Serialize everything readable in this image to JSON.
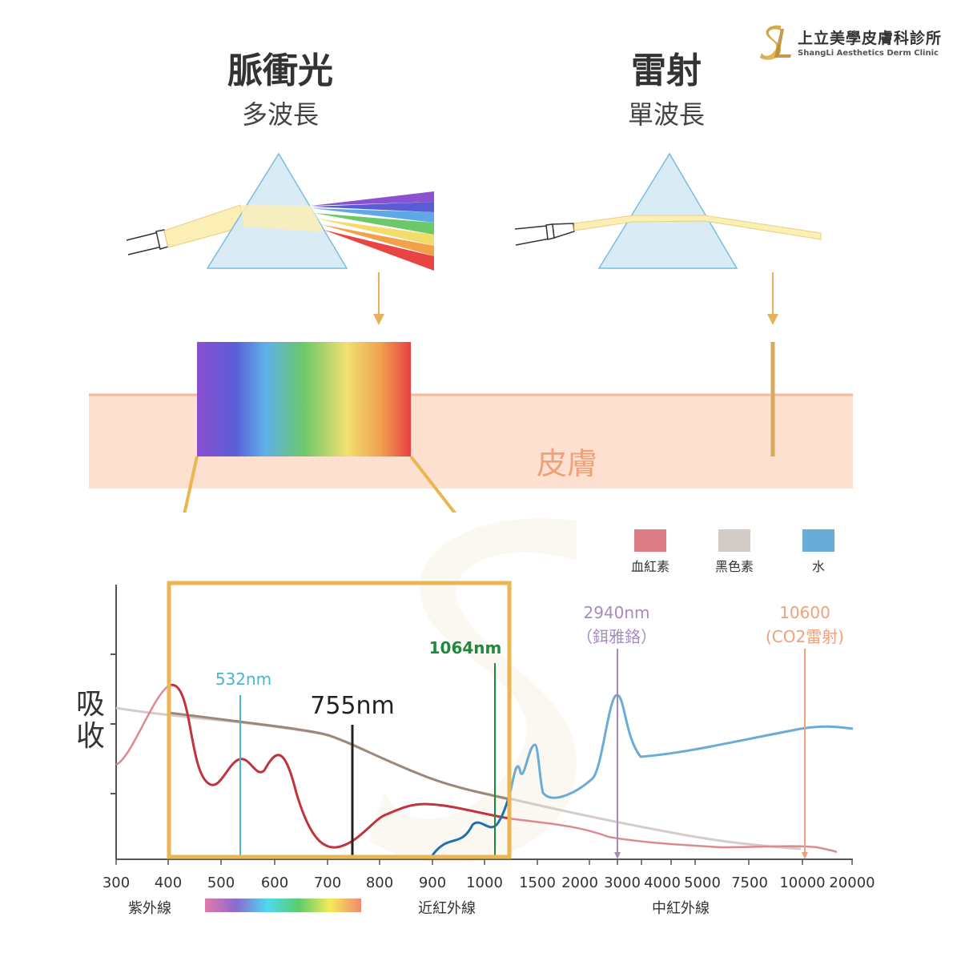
{
  "logo": {
    "name": "上立美學皮膚科診所",
    "en": "ShangLi Aesthetics Derm Clinic"
  },
  "ipl": {
    "title": "脈衝光",
    "subtitle": "多波長"
  },
  "laser": {
    "title": "雷射",
    "subtitle": "單波長"
  },
  "skin_label": "皮膚",
  "legend": [
    {
      "label": "血紅素",
      "color": "#dc7c84"
    },
    {
      "label": "黑色素",
      "color": "#d3cbc6"
    },
    {
      "label": "水",
      "color": "#6aacd8"
    }
  ],
  "axis_title_line1": "吸",
  "axis_title_line2": "收",
  "ticks": [
    "300",
    "400",
    "500",
    "600",
    "700",
    "800",
    "900",
    "1000",
    "1500",
    "2000",
    "3000",
    "4000",
    "5000",
    "7500",
    "10000",
    "20000"
  ],
  "regions": {
    "uv": "紫外線",
    "nir": "近紅外線",
    "mir": "中紅外線"
  },
  "wavelengths": {
    "w532": {
      "label": "532nm",
      "color": "#4ab3d3"
    },
    "w755": {
      "label": "755nm",
      "color": "#222222"
    },
    "w1064": {
      "label": "1064nm",
      "color": "#1e8a3c"
    },
    "w2940": {
      "label": "2940nm",
      "sub": "（鉺雅鉻）",
      "color": "#a58bc0"
    },
    "w10600": {
      "label": "10600",
      "sub": "(CO2雷射)",
      "color": "#f0a07a"
    }
  },
  "chart_data": {
    "type": "line",
    "xlabel": "",
    "ylabel": "吸收",
    "x_ticks": [
      "300",
      "400",
      "500",
      "600",
      "700",
      "800",
      "900",
      "1000",
      "1500",
      "2000",
      "3000",
      "4000",
      "5000",
      "7500",
      "10000",
      "20000"
    ],
    "series": [
      {
        "name": "血紅素",
        "color": "#c0343d"
      },
      {
        "name": "黑色素",
        "color": "#9c877b"
      },
      {
        "name": "水",
        "color": "#6aacd8"
      }
    ],
    "markers_nm": [
      532,
      755,
      1064,
      2940,
      10600
    ]
  }
}
